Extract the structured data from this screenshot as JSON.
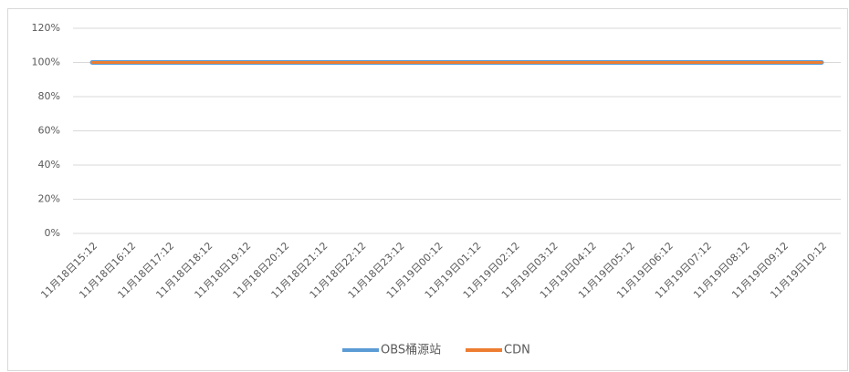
{
  "chart_data": {
    "type": "line",
    "categories": [
      "11月18日15:12",
      "11月18日16:12",
      "11月18日17:12",
      "11月18日18:12",
      "11月18日19:12",
      "11月18日20:12",
      "11月18日21:12",
      "11月18日22:12",
      "11月18日23:12",
      "11月19日00:12",
      "11月19日01:12",
      "11月19日02:12",
      "11月19日03:12",
      "11月19日04:12",
      "11月19日05:12",
      "11月19日06:12",
      "11月19日07:12",
      "11月19日08:12",
      "11月19日09:12",
      "11月19日10:12"
    ],
    "series": [
      {
        "name": "OBS桶源站",
        "color": "#5b9bd5",
        "values": [
          100,
          100,
          100,
          100,
          100,
          100,
          100,
          100,
          100,
          100,
          100,
          100,
          100,
          100,
          100,
          100,
          100,
          100,
          100,
          100
        ]
      },
      {
        "name": "CDN",
        "color": "#ed7d31",
        "values": [
          100,
          100,
          100,
          100,
          100,
          100,
          100,
          100,
          100,
          100,
          100,
          100,
          100,
          100,
          100,
          100,
          100,
          100,
          100,
          100
        ]
      }
    ],
    "ylim": [
      0,
      120
    ],
    "yticks": [
      {
        "value": 0,
        "label": "0%"
      },
      {
        "value": 20,
        "label": "20%"
      },
      {
        "value": 40,
        "label": "40%"
      },
      {
        "value": 60,
        "label": "60%"
      },
      {
        "value": 80,
        "label": "80%"
      },
      {
        "value": 100,
        "label": "100%"
      },
      {
        "value": 120,
        "label": "120%"
      }
    ],
    "grid": true,
    "legend": "bottom"
  }
}
